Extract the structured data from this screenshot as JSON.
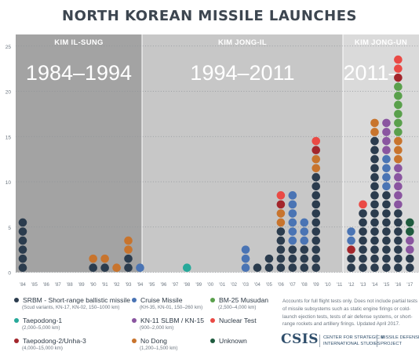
{
  "title": "NORTH KOREAN MISSILE LAUNCHES",
  "chart_data": {
    "type": "dot-stacked-bar",
    "title": "NORTH KOREAN MISSILE LAUNCHES",
    "ylim": [
      0,
      25
    ],
    "y_ticks": [
      0,
      5,
      10,
      15,
      20,
      25
    ],
    "grid": true,
    "categories": [
      "'84",
      "'85",
      "'86",
      "'87",
      "'88",
      "'89",
      "'90",
      "'91",
      "'92",
      "'93",
      "'94",
      "'95",
      "'96",
      "'97",
      "'98",
      "'99",
      "'00",
      "'01",
      "'02",
      "'03",
      "'04",
      "'05",
      "'06",
      "'07",
      "'08",
      "'09",
      "'10",
      "'11",
      "'12",
      "'13",
      "'14",
      "'15",
      "'16",
      "'17"
    ],
    "eras": [
      {
        "leader": "KIM IL-SUNG",
        "period": "1984–1994",
        "from": "'84",
        "to": "'94"
      },
      {
        "leader": "KIM JONG-IL",
        "period": "1994–2011",
        "from": "'94",
        "to": "'11"
      },
      {
        "leader": "KIM JONG-UN",
        "period": "2011–",
        "from": "'11",
        "to": "'17"
      }
    ],
    "stacks": {
      "'84": [
        "srbm",
        "srbm",
        "srbm",
        "srbm",
        "srbm",
        "srbm"
      ],
      "'90": [
        "srbm",
        "nodong"
      ],
      "'91": [
        "srbm",
        "nodong"
      ],
      "'92": [
        "nodong"
      ],
      "'93": [
        "srbm",
        "srbm",
        "nodong",
        "nodong"
      ],
      "'94": [
        "cruise"
      ],
      "'98": [
        "taepodong1"
      ],
      "'03": [
        "cruise",
        "cruise",
        "cruise"
      ],
      "'04": [
        "srbm"
      ],
      "'05": [
        "srbm",
        "srbm"
      ],
      "'06": [
        "srbm",
        "srbm",
        "srbm",
        "srbm",
        "srbm",
        "nodong",
        "nodong",
        "taepodong2",
        "nuclear"
      ],
      "'07": [
        "srbm",
        "srbm",
        "srbm",
        "cruise",
        "cruise",
        "cruise",
        "cruise",
        "cruise",
        "cruise"
      ],
      "'08": [
        "srbm",
        "srbm",
        "srbm",
        "cruise",
        "cruise",
        "cruise"
      ],
      "'09": [
        "srbm",
        "srbm",
        "srbm",
        "srbm",
        "srbm",
        "srbm",
        "srbm",
        "srbm",
        "srbm",
        "srbm",
        "srbm",
        "nodong",
        "nodong",
        "taepodong2",
        "nuclear"
      ],
      "'12": [
        "srbm",
        "srbm",
        "taepodong2",
        "cruise",
        "cruise"
      ],
      "'13": [
        "srbm",
        "srbm",
        "srbm",
        "srbm",
        "srbm",
        "srbm",
        "srbm",
        "nuclear"
      ],
      "'14": [
        "srbm",
        "srbm",
        "srbm",
        "srbm",
        "srbm",
        "srbm",
        "srbm",
        "srbm",
        "srbm",
        "srbm",
        "srbm",
        "srbm",
        "srbm",
        "srbm",
        "srbm",
        "nodong",
        "nodong"
      ],
      "'15": [
        "srbm",
        "srbm",
        "srbm",
        "srbm",
        "srbm",
        "srbm",
        "srbm",
        "srbm",
        "srbm",
        "cruise",
        "cruise",
        "cruise",
        "cruise",
        "kn11",
        "kn11",
        "kn11",
        "kn11"
      ],
      "'16": [
        "srbm",
        "srbm",
        "srbm",
        "srbm",
        "srbm",
        "srbm",
        "srbm",
        "kn11",
        "kn11",
        "kn11",
        "kn11",
        "kn11",
        "nodong",
        "nodong",
        "nodong",
        "musudan",
        "musudan",
        "musudan",
        "musudan",
        "musudan",
        "musudan",
        "taepodong2",
        "nuclear",
        "nuclear"
      ],
      "'17": [
        "srbm",
        "srbm",
        "kn11",
        "kn11",
        "unknown",
        "unknown"
      ]
    },
    "note": "Accounts for full flight tests only. Does not include partial tests of missile subsystems such as static engine firings or cold-launch ejection tests, tests of air defense systems, or short-range rockets and artillery firings. Updated April 2017."
  },
  "legend": [
    {
      "key": "srbm",
      "label": "SRBM - Short-range ballistic missile",
      "sub": "(Scud variants, KN-17, KN-02, 150–1000 km)",
      "color": "#2b3c4e"
    },
    {
      "key": "cruise",
      "label": "Cruise Missile",
      "sub": "(KH-35, KN-01, 150–260 km)",
      "color": "#4a74b4"
    },
    {
      "key": "musudan",
      "label": "BM-25 Musudan",
      "sub": "(2,500–4,000 km)",
      "color": "#5aa04c"
    },
    {
      "key": "taepodong1",
      "label": "Taepodong-1",
      "sub": "(2,000–5,000 km)",
      "color": "#27a99a"
    },
    {
      "key": "kn11",
      "label": "KN-11 SLBM / KN-15",
      "sub": "(900–2,000 km)",
      "color": "#8a55a0"
    },
    {
      "key": "nuclear",
      "label": "Nuclear Test",
      "sub": "",
      "color": "#ea4a45"
    },
    {
      "key": "taepodong2",
      "label": "Taepodong-2/Unha-3",
      "sub": "(4,000–15,000 km)",
      "color": "#a3262c"
    },
    {
      "key": "nodong",
      "label": "No Dong",
      "sub": "(1,200–1,500 km)",
      "color": "#c8742d"
    },
    {
      "key": "unknown",
      "label": "Unknown",
      "sub": "",
      "color": "#1e5b3e"
    }
  ],
  "colors": {
    "era1": "#a3a3a3",
    "era2": "#c7c7c7",
    "era3": "#dadada",
    "era_text": "#ffffff",
    "grid": "#8e9398"
  },
  "footer": {
    "logo": "CSIS",
    "center_line1": "CENTER FOR STRATEGIC &",
    "center_line2": "INTERNATIONAL STUDIES",
    "project_line1": "MISSILE DEFENSE",
    "project_line2": "PROJECT"
  }
}
